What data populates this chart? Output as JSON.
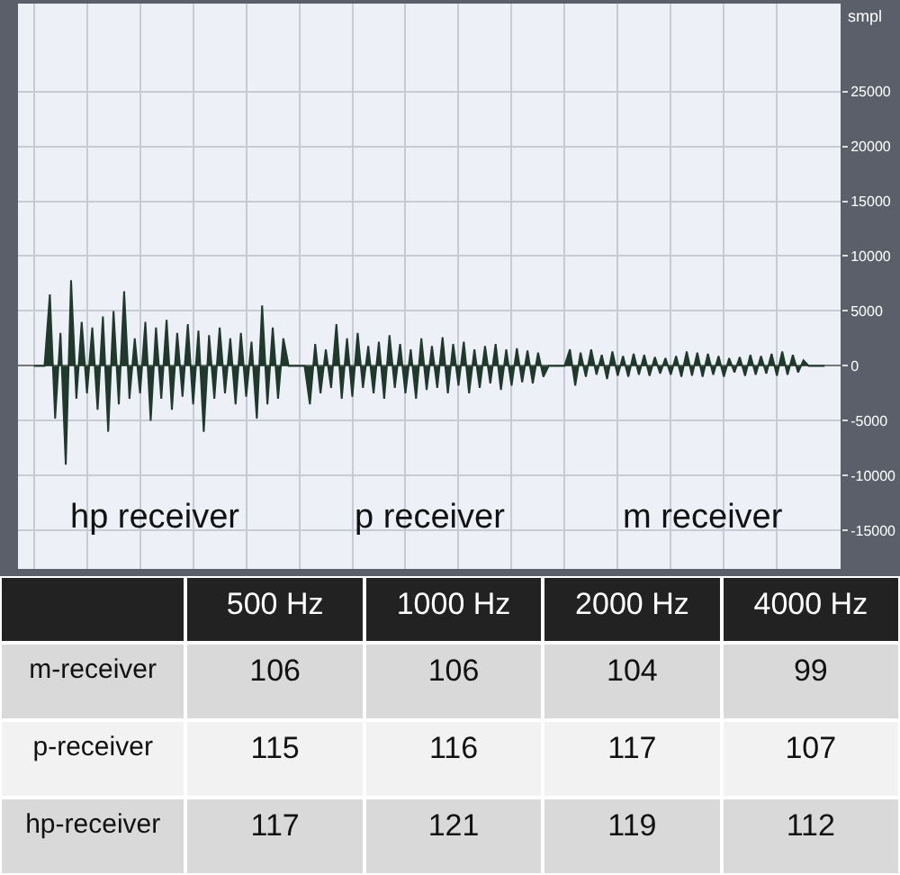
{
  "chart_data": [
    {
      "type": "area",
      "ylabel": "smpl",
      "color": "#1e3a2a",
      "grid": true,
      "legend": false,
      "tick_labels": "y",
      "ylim": [
        -18500,
        33000
      ],
      "yticks": [
        -15000,
        -10000,
        -5000,
        0,
        5000,
        10000,
        15000,
        20000,
        25000
      ],
      "categories": [
        null,
        null,
        null,
        null,
        null,
        null,
        null,
        null,
        null,
        null,
        null,
        null,
        null,
        null,
        null,
        null,
        null,
        null,
        null,
        null,
        null,
        null,
        null,
        null,
        null,
        null,
        null,
        null,
        null,
        null,
        null,
        null,
        null,
        null,
        null,
        null,
        null,
        null,
        null,
        null,
        null,
        null,
        null,
        null,
        null,
        null,
        null,
        null,
        null,
        null,
        null,
        null,
        null,
        null,
        null,
        null,
        null,
        null,
        null,
        null,
        null,
        null,
        null,
        null,
        null,
        null,
        null,
        null,
        null,
        null,
        null,
        null,
        null,
        null,
        null,
        null,
        null,
        null,
        null,
        null,
        null,
        null,
        null,
        null,
        null,
        null,
        null,
        null,
        null,
        null,
        null,
        null,
        null,
        null,
        null,
        null,
        null,
        null,
        null,
        null,
        null,
        null,
        null,
        null,
        null,
        null,
        null,
        null,
        null,
        null,
        null,
        null,
        null,
        null,
        null,
        null,
        null,
        null,
        null,
        null,
        null,
        null,
        null,
        null,
        null,
        null,
        null,
        null,
        null,
        null,
        null,
        null,
        null,
        null,
        null,
        null,
        null,
        null,
        null,
        null,
        null,
        null,
        null,
        null,
        null,
        null,
        null,
        null,
        null,
        null
      ],
      "values": [
        0,
        0,
        0,
        6500,
        -4800,
        3000,
        -9000,
        7800,
        -3000,
        4000,
        -2500,
        3500,
        -4000,
        4500,
        -6000,
        5000,
        -3500,
        6800,
        -3000,
        2500,
        -2500,
        4000,
        -5000,
        3500,
        -3000,
        4200,
        -4000,
        3000,
        -2800,
        3800,
        -3500,
        3200,
        -6000,
        2800,
        -3000,
        3500,
        -2500,
        2500,
        -3500,
        3000,
        -2800,
        2200,
        -4800,
        5500,
        -3500,
        3500,
        -3000,
        2500,
        0,
        0,
        0,
        0,
        -3500,
        2000,
        -2500,
        1500,
        -2000,
        3800,
        -3000,
        2500,
        -2800,
        3000,
        -2000,
        1800,
        -2500,
        2200,
        -3000,
        2800,
        -2000,
        2000,
        -2500,
        1500,
        -3000,
        2500,
        -2200,
        1800,
        -2000,
        2600,
        -2500,
        2000,
        -1800,
        2200,
        -2500,
        1500,
        -2000,
        1800,
        -1600,
        2000,
        -2200,
        1500,
        -1800,
        1600,
        -1500,
        1400,
        -1600,
        1200,
        -1000,
        0,
        0,
        0,
        0,
        1500,
        -1800,
        1200,
        -1000,
        1500,
        -800,
        1000,
        -1200,
        1300,
        -900,
        900,
        -1000,
        1100,
        -800,
        1000,
        -900,
        800,
        -700,
        700,
        -800,
        900,
        -1000,
        1300,
        -900,
        1200,
        -1000,
        1100,
        -800,
        900,
        -1000,
        700,
        -600,
        800,
        -900,
        1000,
        -800,
        900,
        -700,
        1100,
        -900,
        1300,
        -800,
        1000,
        -600,
        500,
        0,
        0,
        0,
        0
      ],
      "annotations": [
        "hp receiver",
        "p receiver",
        "m receiver"
      ]
    },
    {
      "type": "other",
      "data_labels": true,
      "categories": [
        "500 Hz",
        "1000 Hz",
        "2000 Hz",
        "4000 Hz"
      ],
      "series": [
        {
          "name": "m-receiver",
          "values": [
            106,
            106,
            104,
            99
          ]
        },
        {
          "name": "p-receiver",
          "values": [
            115,
            116,
            117,
            107
          ]
        },
        {
          "name": "hp-receiver",
          "values": [
            117,
            121,
            119,
            112
          ]
        }
      ]
    }
  ]
}
